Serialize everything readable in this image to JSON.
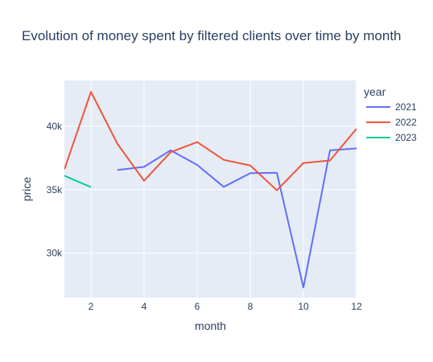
{
  "chart_data": {
    "type": "line",
    "title": "Evolution of money spent by filtered clients over time by month",
    "xlabel": "month",
    "ylabel": "price",
    "xlim": [
      1,
      12
    ],
    "ylim": [
      26500,
      43600
    ],
    "x_ticks": [
      2,
      4,
      6,
      8,
      10,
      12
    ],
    "y_ticks": [
      30000,
      35000,
      40000
    ],
    "y_tick_labels": [
      "30k",
      "35k",
      "40k"
    ],
    "grid": true,
    "legend": {
      "title": "year",
      "placement": "right"
    },
    "colors": {
      "plot_background": "#E5ECF6",
      "grid": "#ffffff",
      "text": "#2a3f5f"
    },
    "series": [
      {
        "name": "2021",
        "color": "#636EFA",
        "x": [
          3,
          4,
          5,
          6,
          7,
          8,
          9,
          10,
          11,
          12
        ],
        "y": [
          36550,
          36800,
          38100,
          36950,
          35220,
          36300,
          36330,
          27300,
          38100,
          38250
        ]
      },
      {
        "name": "2022",
        "color": "#EF553B",
        "x": [
          1,
          2,
          3,
          4,
          5,
          6,
          7,
          8,
          9,
          10,
          11,
          12
        ],
        "y": [
          36600,
          42700,
          38600,
          35700,
          37950,
          38750,
          37350,
          36900,
          34950,
          37100,
          37300,
          39800
        ]
      },
      {
        "name": "2023",
        "color": "#00CC96",
        "x": [
          1,
          2
        ],
        "y": [
          36100,
          35200
        ]
      }
    ]
  }
}
